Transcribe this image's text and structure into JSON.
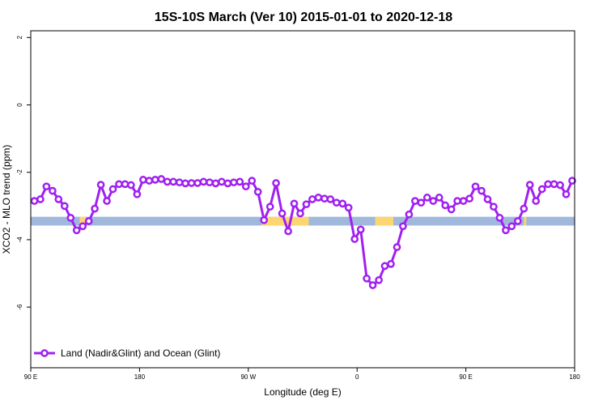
{
  "chart_data": {
    "type": "line",
    "title": "15S-10S March (Ver 10)   2015-01-01 to 2020-12-18",
    "xlabel": "Longitude (deg E)",
    "ylabel": "XCO2 - MLO trend (ppm)",
    "x_ticks": [
      {
        "value": 90,
        "label": "90 E"
      },
      {
        "value": 180,
        "label": "180"
      },
      {
        "value": 270,
        "label": "90 W"
      },
      {
        "value": 360,
        "label": "0"
      },
      {
        "value": 450,
        "label": "90 E"
      },
      {
        "value": 540,
        "label": "180"
      }
    ],
    "y_ticks": [
      {
        "value": 2,
        "label": "2"
      },
      {
        "value": 0,
        "label": "0"
      },
      {
        "value": -2,
        "label": "-2"
      },
      {
        "value": -4,
        "label": "-4"
      },
      {
        "value": -6,
        "label": "-6"
      }
    ],
    "xlim": [
      90,
      540
    ],
    "ylim": [
      -7.8,
      2.2
    ],
    "grid": false,
    "legend_position": "bottom-left",
    "surface_band": {
      "y_range": [
        -3.58,
        -3.32
      ],
      "ocean_color": "#9fb8dc",
      "land_color": "#fdd672",
      "land_segments": [
        [
          130.5,
          135.5
        ],
        [
          281,
          320
        ],
        [
          375,
          390
        ],
        [
          498,
          500
        ]
      ]
    },
    "series": [
      {
        "name": "Land (Nadir&Glint) and Ocean (Glint)",
        "color": "#a020f0",
        "x": [
          93,
          98,
          103,
          108,
          113,
          118,
          123,
          128,
          133,
          138,
          143,
          148,
          153,
          158,
          163,
          168,
          173,
          178,
          183,
          188,
          193,
          198,
          203,
          208,
          213,
          218,
          223,
          228,
          233,
          238,
          243,
          248,
          253,
          258,
          263,
          268,
          273,
          278,
          283,
          288,
          293,
          298,
          303,
          308,
          313,
          318,
          323,
          328,
          333,
          338,
          343,
          348,
          353,
          358,
          363,
          368,
          373,
          378,
          383,
          388,
          393,
          398,
          403,
          408,
          413,
          418,
          423,
          428,
          433,
          438,
          443,
          448,
          453,
          458,
          463,
          468,
          473,
          478,
          483,
          488,
          493,
          498,
          503,
          508,
          513,
          518,
          523,
          528,
          533,
          538
        ],
        "y": [
          -2.85,
          -2.8,
          -2.42,
          -2.55,
          -2.8,
          -3.0,
          -3.35,
          -3.72,
          -3.6,
          -3.45,
          -3.08,
          -2.37,
          -2.85,
          -2.5,
          -2.35,
          -2.35,
          -2.38,
          -2.65,
          -2.22,
          -2.25,
          -2.22,
          -2.2,
          -2.28,
          -2.28,
          -2.3,
          -2.33,
          -2.32,
          -2.32,
          -2.28,
          -2.3,
          -2.33,
          -2.28,
          -2.33,
          -2.3,
          -2.28,
          -2.42,
          -2.25,
          -2.58,
          -3.42,
          -3.02,
          -2.32,
          -3.22,
          -3.75,
          -2.93,
          -3.22,
          -2.95,
          -2.8,
          -2.75,
          -2.78,
          -2.8,
          -2.9,
          -2.93,
          -3.05,
          -3.98,
          -3.7,
          -5.15,
          -5.35,
          -5.2,
          -4.78,
          -4.72,
          -4.22,
          -3.6,
          -3.25,
          -2.85,
          -2.9,
          -2.75,
          -2.85,
          -2.75,
          -2.98,
          -3.1,
          -2.85,
          -2.85,
          -2.78,
          -2.42,
          -2.55,
          -2.8,
          -3.02,
          -3.35,
          -3.72,
          -3.6,
          -3.45,
          -3.08,
          -2.37,
          -2.85,
          -2.5,
          -2.35,
          -2.35,
          -2.38,
          -2.65,
          -2.25
        ]
      }
    ]
  }
}
